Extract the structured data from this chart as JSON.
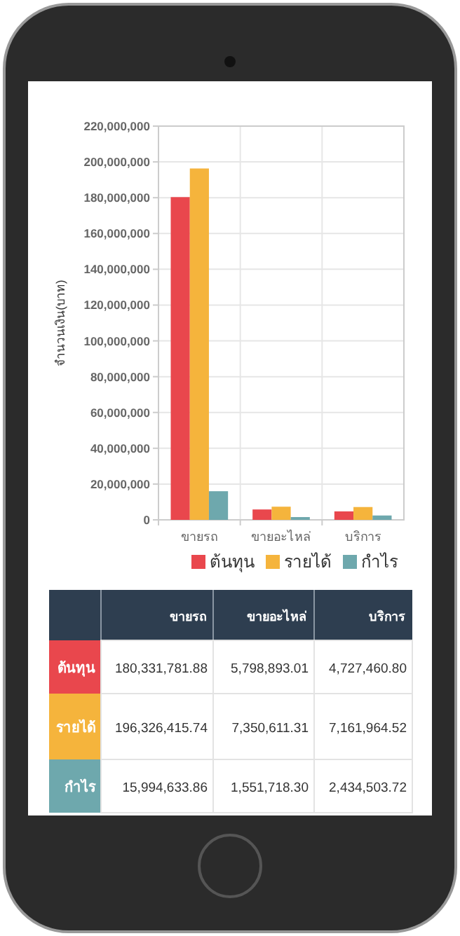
{
  "chart_data": {
    "type": "bar",
    "ylabel": "จำนวนเงิน(บาท)",
    "categories": [
      "ขายรถ",
      "ขายอะไหล่",
      "บริการ"
    ],
    "series": [
      {
        "name": "ต้นทุน",
        "color": "#e9474d",
        "values": [
          180331781.88,
          5798893.01,
          4727460.8
        ],
        "value_labels": [
          "180,331,781.88",
          "5,798,893.01",
          "4,727,460.80"
        ]
      },
      {
        "name": "รายได้",
        "color": "#f5b43c",
        "values": [
          196326415.74,
          7350611.31,
          7161964.52
        ],
        "value_labels": [
          "196,326,415.74",
          "7,350,611.31",
          "7,161,964.52"
        ]
      },
      {
        "name": "กำไร",
        "color": "#6ea8ad",
        "values": [
          15994633.86,
          1551718.3,
          2434503.72
        ],
        "value_labels": [
          "15,994,633.86",
          "1,551,718.30",
          "2,434,503.72"
        ]
      }
    ],
    "ylim": [
      0,
      220000000
    ],
    "yticks": [
      {
        "value": 0,
        "label": "0"
      },
      {
        "value": 20000000,
        "label": "20,000,000"
      },
      {
        "value": 40000000,
        "label": "40,000,000"
      },
      {
        "value": 60000000,
        "label": "60,000,000"
      },
      {
        "value": 80000000,
        "label": "80,000,000"
      },
      {
        "value": 100000000,
        "label": "100,000,000"
      },
      {
        "value": 120000000,
        "label": "120,000,000"
      },
      {
        "value": 140000000,
        "label": "140,000,000"
      },
      {
        "value": 160000000,
        "label": "160,000,000"
      },
      {
        "value": 180000000,
        "label": "180,000,000"
      },
      {
        "value": 200000000,
        "label": "200,000,000"
      },
      {
        "value": 220000000,
        "label": "220,000,000"
      }
    ],
    "grid": true,
    "legend": "bottom"
  }
}
